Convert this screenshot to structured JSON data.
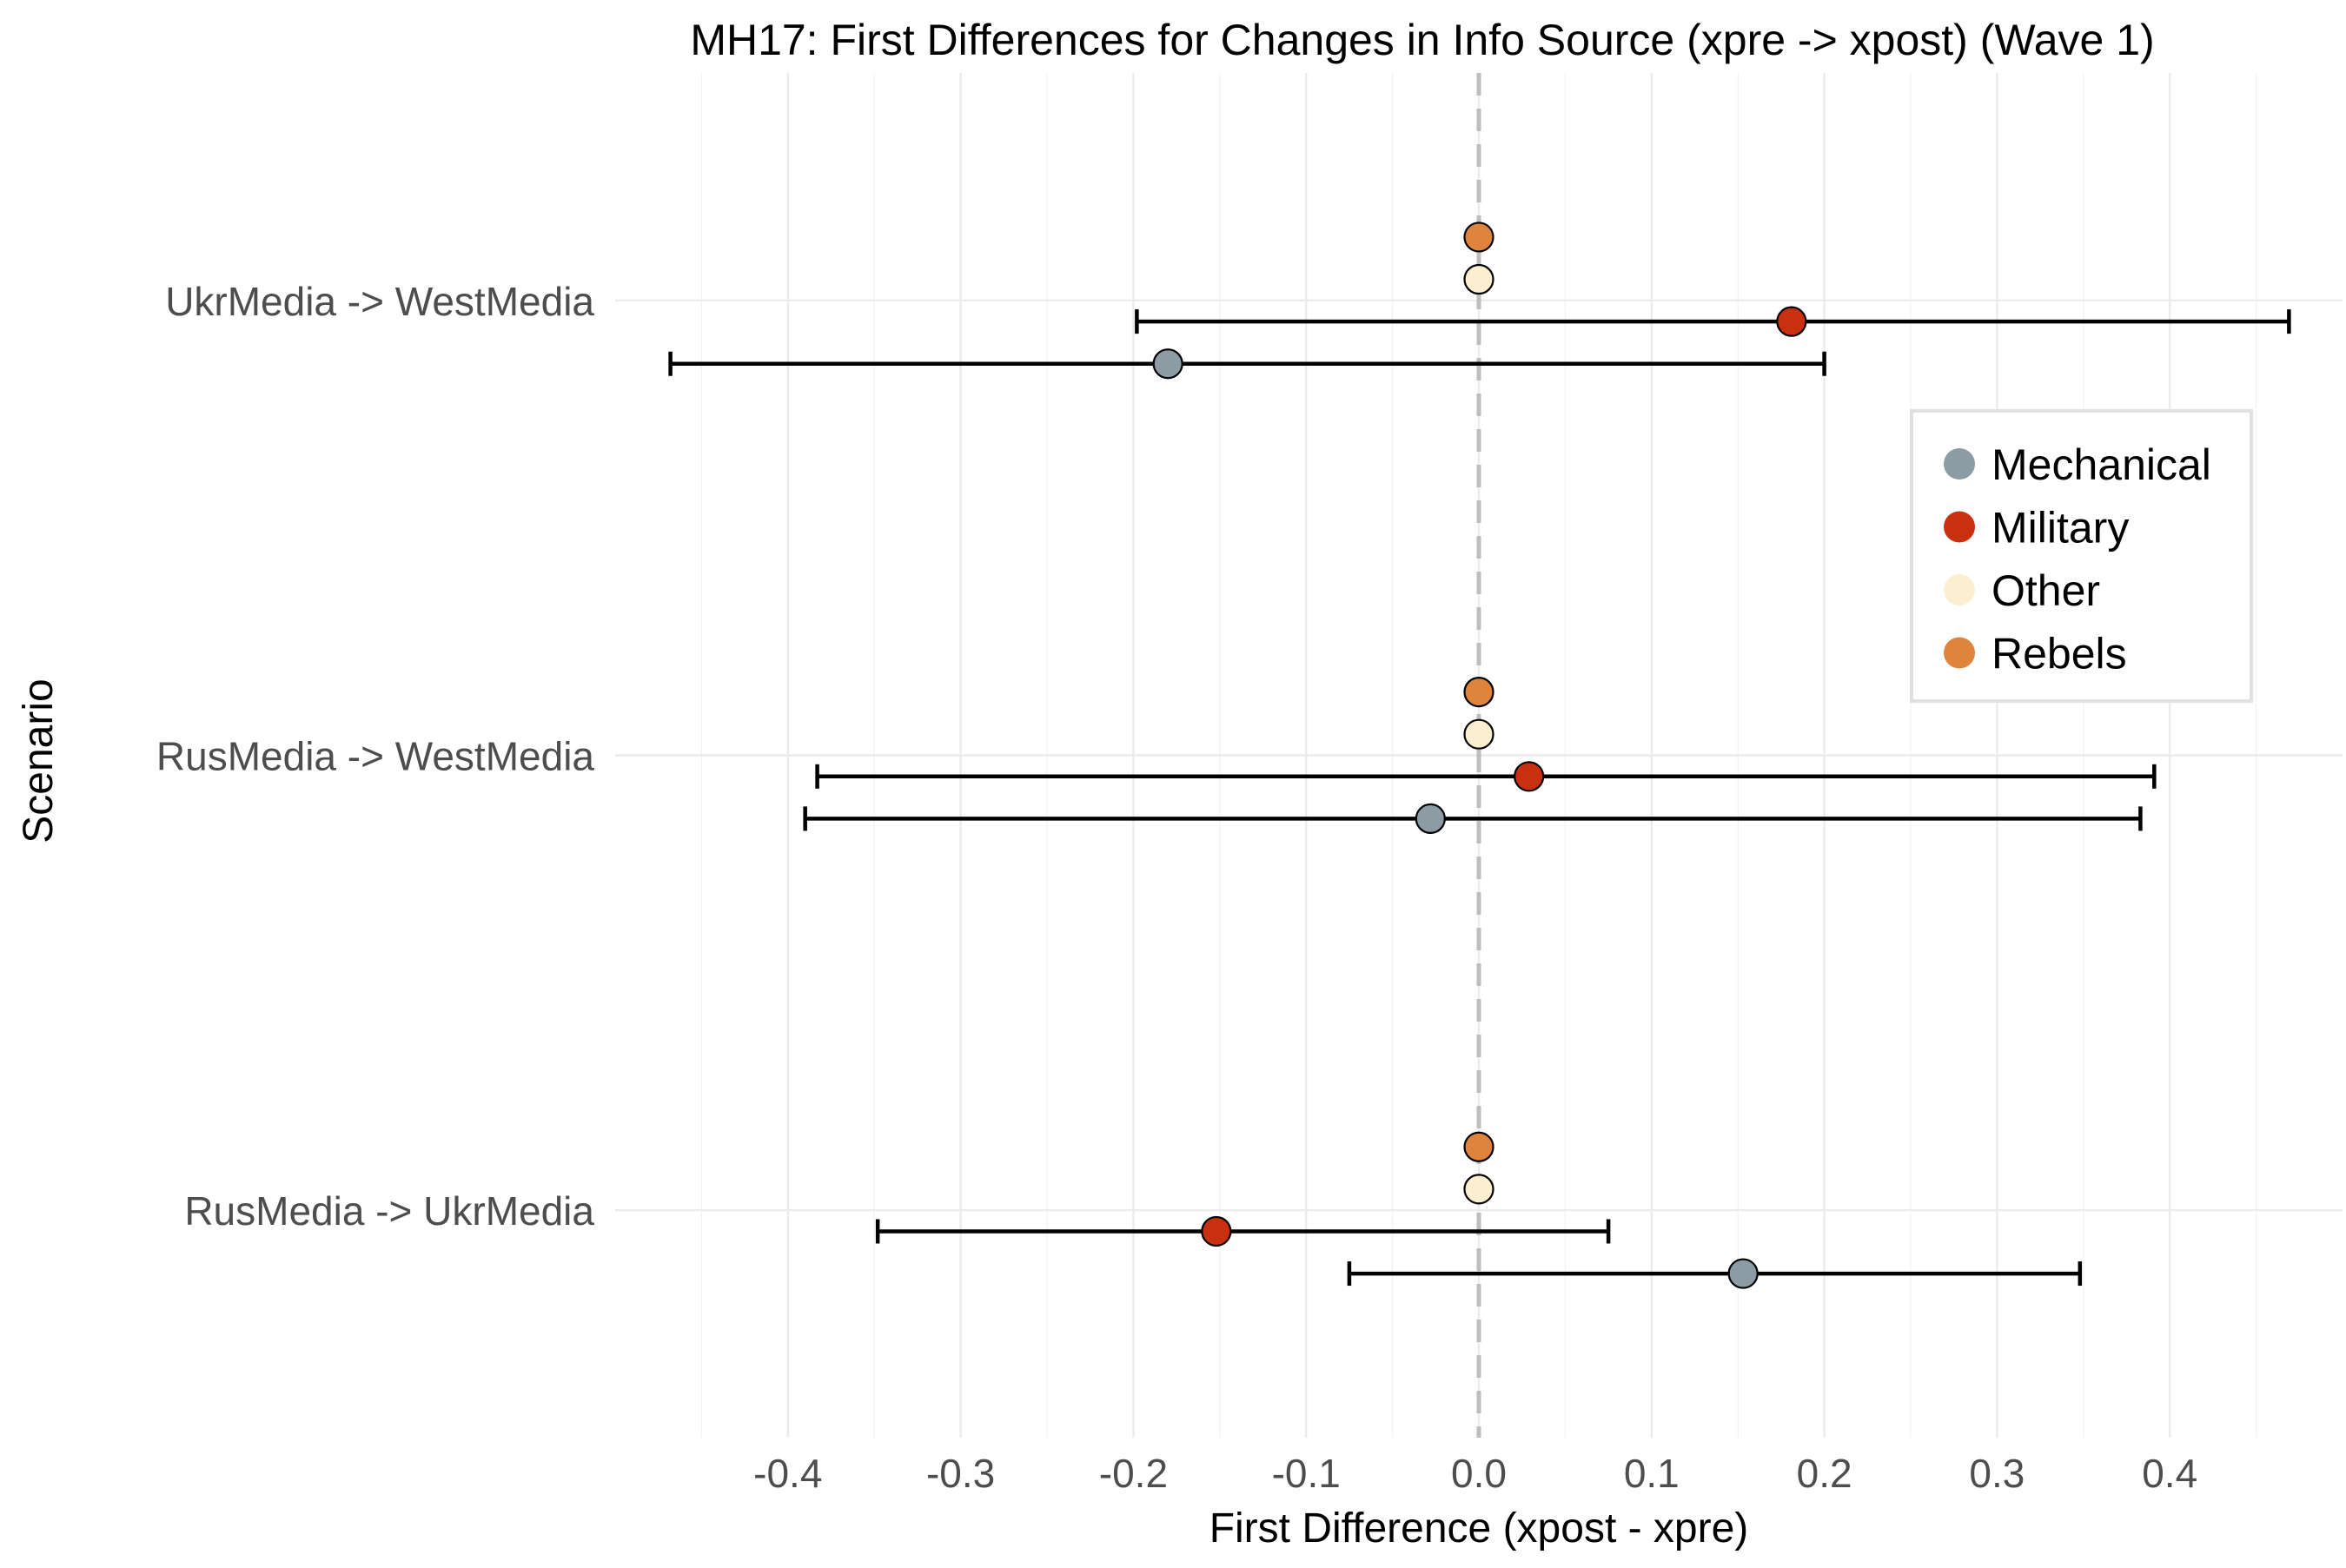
{
  "chart_data": {
    "type": "scatter",
    "title": "MH17: First Differences for Changes in Info Source (xpre -> xpost) (Wave 1)",
    "xlabel": "First Difference (xpost - xpre)",
    "ylabel": "Scenario",
    "xlim": [
      -0.5,
      0.5
    ],
    "x_ticks": [
      -0.4,
      -0.3,
      -0.2,
      -0.1,
      0.0,
      0.1,
      0.2,
      0.3,
      0.4
    ],
    "x_tick_labels": [
      "-0.4",
      "-0.3",
      "-0.2",
      "-0.1",
      "0.0",
      "0.1",
      "0.2",
      "0.3",
      "0.4"
    ],
    "categories": [
      "UkrMedia -> WestMedia",
      "RusMedia -> WestMedia",
      "RusMedia -> UkrMedia"
    ],
    "reference_line": 0,
    "grid": true,
    "legend_position": "right",
    "series": [
      {
        "name": "Mechanical",
        "color": "#8c9ca4",
        "estimates": [
          -0.18,
          -0.028,
          0.153
        ],
        "lower": [
          -0.468,
          -0.39,
          -0.075
        ],
        "upper": [
          0.2,
          0.383,
          0.348
        ]
      },
      {
        "name": "Military",
        "color": "#c8300f",
        "estimates": [
          0.181,
          0.029,
          -0.152
        ],
        "lower": [
          -0.198,
          -0.383,
          -0.348
        ],
        "upper": [
          0.469,
          0.391,
          0.075
        ]
      },
      {
        "name": "Other",
        "color": "#fbefcf",
        "estimates": [
          0.0,
          0.0,
          0.0
        ],
        "lower": [
          0.0,
          0.0,
          0.0
        ],
        "upper": [
          0.0,
          0.0,
          0.0
        ]
      },
      {
        "name": "Rebels",
        "color": "#df843c",
        "estimates": [
          0.0,
          0.0,
          0.0
        ],
        "lower": [
          0.0,
          0.0,
          0.0
        ],
        "upper": [
          0.0,
          0.0,
          0.0
        ]
      }
    ]
  }
}
